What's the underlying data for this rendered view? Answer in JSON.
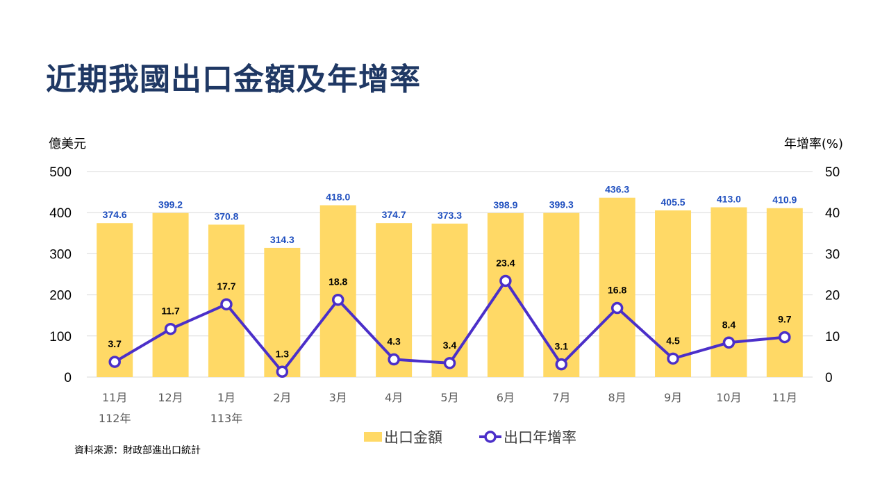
{
  "title": "近期我國出口金額及年增率",
  "source": "資料來源：財政部進出口統計",
  "colors": {
    "title": "#1F3864",
    "bar": "#FFD966",
    "line": "#4B2FC9",
    "bar_label": "#1F4FBF",
    "grid": "#D9D9D9",
    "axis_text": "#000000",
    "tick_text": "#595959"
  },
  "chart_data": {
    "type": "bar+line",
    "categories": [
      "11月",
      "12月",
      "1月",
      "2月",
      "3月",
      "4月",
      "5月",
      "6月",
      "7月",
      "8月",
      "9月",
      "10月",
      "11月"
    ],
    "year_labels": [
      "112年",
      "",
      "113年",
      "",
      "",
      "",
      "",
      "",
      "",
      "",
      "",
      "",
      ""
    ],
    "left_axis": {
      "label": "億美元",
      "min": 0,
      "max": 500,
      "ticks": [
        0,
        100,
        200,
        300,
        400,
        500
      ]
    },
    "right_axis": {
      "label": "年增率(%)",
      "min": 0,
      "max": 50,
      "ticks": [
        0,
        10,
        20,
        30,
        40,
        50
      ]
    },
    "series": [
      {
        "name": "出口金額",
        "type": "bar",
        "axis": "left",
        "values": [
          374.6,
          399.2,
          370.8,
          314.3,
          418.0,
          374.7,
          373.3,
          398.9,
          399.3,
          436.3,
          405.5,
          413.0,
          410.9
        ],
        "labels": [
          "374.6",
          "399.2",
          "370.8",
          "314.3",
          "418.0",
          "374.7",
          "373.3",
          "398.9",
          "399.3",
          "436.3",
          "405.5",
          "413.0",
          "410.9"
        ]
      },
      {
        "name": "出口年增率",
        "type": "line",
        "axis": "right",
        "values": [
          3.7,
          11.7,
          17.7,
          1.3,
          18.8,
          4.3,
          3.4,
          23.4,
          3.1,
          16.8,
          4.5,
          8.4,
          9.7
        ],
        "labels": [
          "3.7",
          "11.7",
          "17.7",
          "1.3",
          "18.8",
          "4.3",
          "3.4",
          "23.4",
          "3.1",
          "16.8",
          "4.5",
          "8.4",
          "9.7"
        ]
      }
    ],
    "grid": true,
    "legend_position": "bottom"
  }
}
